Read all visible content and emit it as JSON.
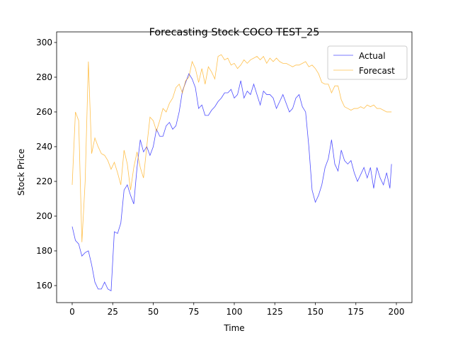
{
  "chart_data": {
    "type": "line",
    "title": "Forecasting Stock COCO TEST_25",
    "x_label": "Time",
    "y_label": "Stock Price",
    "x": [
      0,
      2,
      4,
      6,
      8,
      10,
      12,
      14,
      16,
      18,
      20,
      22,
      24,
      26,
      28,
      30,
      32,
      34,
      36,
      38,
      40,
      42,
      44,
      46,
      48,
      50,
      52,
      54,
      56,
      58,
      60,
      62,
      64,
      66,
      68,
      70,
      72,
      74,
      76,
      78,
      80,
      82,
      84,
      86,
      88,
      90,
      92,
      94,
      96,
      98,
      100,
      102,
      104,
      106,
      108,
      110,
      112,
      114,
      116,
      118,
      120,
      122,
      124,
      126,
      128,
      130,
      132,
      134,
      136,
      138,
      140,
      142,
      144,
      146,
      148,
      150,
      152,
      154,
      156,
      158,
      160,
      162,
      164,
      166,
      168,
      170,
      172,
      174,
      176,
      178,
      180,
      182,
      184,
      186,
      188,
      190,
      192,
      194,
      196,
      197
    ],
    "series": [
      {
        "name": "Actual",
        "color": "#0000ff",
        "values": [
          194,
          186,
          184,
          177,
          179,
          180,
          172,
          162,
          158,
          158,
          162,
          158,
          157,
          191,
          190,
          196,
          215,
          218,
          212,
          207,
          228,
          244,
          237,
          240,
          235,
          240,
          250,
          246,
          246,
          252,
          254,
          250,
          252,
          260,
          272,
          277,
          282,
          279,
          274,
          262,
          264,
          258,
          258,
          261,
          263,
          266,
          268,
          271,
          271,
          273,
          268,
          270,
          278,
          268,
          272,
          270,
          276,
          270,
          264,
          272,
          270,
          270,
          268,
          262,
          266,
          270,
          265,
          260,
          262,
          268,
          270,
          263,
          260,
          240,
          215,
          208,
          212,
          218,
          228,
          233,
          244,
          230,
          226,
          238,
          232,
          230,
          232,
          225,
          220,
          224,
          228,
          222,
          228,
          216,
          228,
          222,
          218,
          225,
          216,
          230
        ]
      },
      {
        "name": "Forecast",
        "color": "#ffa500",
        "values": [
          218,
          260,
          255,
          185,
          220,
          289,
          236,
          245,
          240,
          236,
          235,
          232,
          227,
          231,
          225,
          218,
          238,
          230,
          215,
          228,
          237,
          228,
          222,
          240,
          257,
          255,
          249,
          255,
          262,
          260,
          265,
          268,
          274,
          276,
          271,
          278,
          280,
          289,
          285,
          277,
          285,
          276,
          286,
          283,
          279,
          292,
          293,
          290,
          291,
          287,
          288,
          285,
          287,
          290,
          288,
          290,
          291,
          292,
          290,
          292,
          288,
          291,
          289,
          291,
          289,
          288,
          288,
          287,
          286,
          287,
          287,
          288,
          289,
          286,
          287,
          285,
          282,
          277,
          276,
          276,
          271,
          275,
          275,
          267,
          263,
          262,
          261,
          262,
          262,
          263,
          262,
          264,
          263,
          264,
          262,
          262,
          261,
          260,
          260,
          260
        ]
      }
    ],
    "xlim": [
      -9.6,
      209.6
    ],
    "ylim": [
      150.2,
      306.1
    ],
    "xticks": [
      0,
      25,
      50,
      75,
      100,
      125,
      150,
      175,
      200
    ],
    "yticks": [
      160,
      180,
      200,
      220,
      240,
      260,
      280,
      300
    ],
    "legend": "upper right"
  }
}
